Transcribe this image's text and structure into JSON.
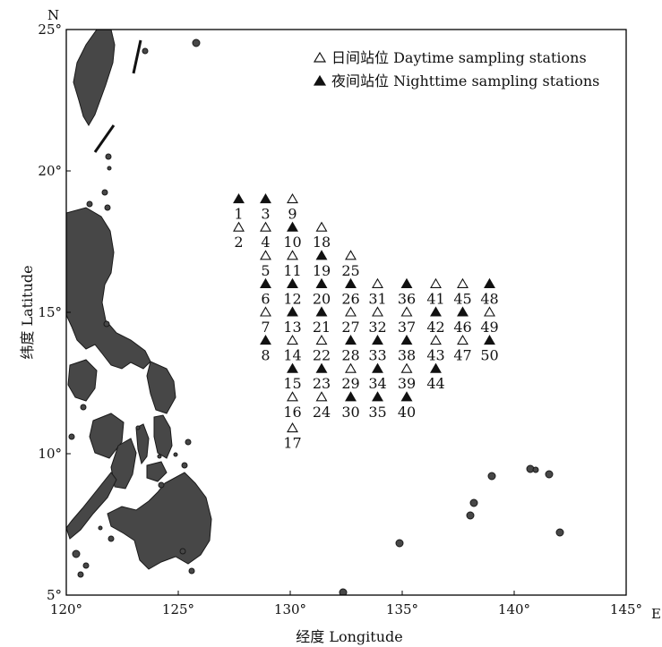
{
  "axes": {
    "x_ticks": [
      "120°",
      "125°",
      "130°",
      "135°",
      "140°",
      "145°"
    ],
    "y_ticks": [
      "25°",
      "20°",
      "15°",
      "10°",
      "5°"
    ],
    "x_unit": "E",
    "y_unit": "N",
    "xlabel": "经度 Longitude",
    "ylabel": "纬度 Latitude",
    "xlim": [
      120,
      145
    ],
    "ylim": [
      5,
      25
    ]
  },
  "legend": {
    "placement": "top-right",
    "day_label": "日间站位 Daytime sampling stations",
    "night_label": "夜间站位 Nighttime sampling stations"
  },
  "colors": {
    "land": "#474747",
    "frame": "#000000",
    "marker": "#111111"
  },
  "chart_data": {
    "type": "scatter",
    "xlabel": "经度 Longitude",
    "ylabel": "纬度 Latitude",
    "xlim": [
      120,
      145
    ],
    "ylim": [
      5,
      25
    ],
    "series": [
      {
        "name": "日间站位 Daytime sampling stations",
        "marker": "open-triangle"
      },
      {
        "name": "夜间站位 Nighttime sampling stations",
        "marker": "filled-triangle"
      }
    ],
    "stations": [
      {
        "id": "1",
        "lon": 127.7,
        "lat": 19,
        "type": "night"
      },
      {
        "id": "2",
        "lon": 127.7,
        "lat": 18,
        "type": "day"
      },
      {
        "id": "3",
        "lon": 128.9,
        "lat": 19,
        "type": "night"
      },
      {
        "id": "4",
        "lon": 128.9,
        "lat": 18,
        "type": "day"
      },
      {
        "id": "5",
        "lon": 128.9,
        "lat": 17,
        "type": "day"
      },
      {
        "id": "6",
        "lon": 128.9,
        "lat": 16,
        "type": "night"
      },
      {
        "id": "7",
        "lon": 128.9,
        "lat": 15,
        "type": "day"
      },
      {
        "id": "8",
        "lon": 128.9,
        "lat": 14,
        "type": "night"
      },
      {
        "id": "9",
        "lon": 130.1,
        "lat": 19,
        "type": "day"
      },
      {
        "id": "10",
        "lon": 130.1,
        "lat": 18,
        "type": "night"
      },
      {
        "id": "11",
        "lon": 130.1,
        "lat": 17,
        "type": "day"
      },
      {
        "id": "12",
        "lon": 130.1,
        "lat": 16,
        "type": "night"
      },
      {
        "id": "13",
        "lon": 130.1,
        "lat": 15,
        "type": "night"
      },
      {
        "id": "14",
        "lon": 130.1,
        "lat": 14,
        "type": "day"
      },
      {
        "id": "15",
        "lon": 130.1,
        "lat": 13,
        "type": "night"
      },
      {
        "id": "16",
        "lon": 130.1,
        "lat": 12,
        "type": "day"
      },
      {
        "id": "17",
        "lon": 130.1,
        "lat": 10.9,
        "type": "day"
      },
      {
        "id": "18",
        "lon": 131.4,
        "lat": 18,
        "type": "day"
      },
      {
        "id": "19",
        "lon": 131.4,
        "lat": 17,
        "type": "night"
      },
      {
        "id": "20",
        "lon": 131.4,
        "lat": 16,
        "type": "night"
      },
      {
        "id": "21",
        "lon": 131.4,
        "lat": 15,
        "type": "night"
      },
      {
        "id": "22",
        "lon": 131.4,
        "lat": 14,
        "type": "day"
      },
      {
        "id": "23",
        "lon": 131.4,
        "lat": 13,
        "type": "night"
      },
      {
        "id": "24",
        "lon": 131.4,
        "lat": 12,
        "type": "day"
      },
      {
        "id": "25",
        "lon": 132.7,
        "lat": 17,
        "type": "day"
      },
      {
        "id": "26",
        "lon": 132.7,
        "lat": 16,
        "type": "night"
      },
      {
        "id": "27",
        "lon": 132.7,
        "lat": 15,
        "type": "day"
      },
      {
        "id": "28",
        "lon": 132.7,
        "lat": 14,
        "type": "night"
      },
      {
        "id": "29",
        "lon": 132.7,
        "lat": 13,
        "type": "day"
      },
      {
        "id": "30",
        "lon": 132.7,
        "lat": 12,
        "type": "night"
      },
      {
        "id": "31",
        "lon": 133.9,
        "lat": 16,
        "type": "day"
      },
      {
        "id": "32",
        "lon": 133.9,
        "lat": 15,
        "type": "day"
      },
      {
        "id": "33",
        "lon": 133.9,
        "lat": 14,
        "type": "night"
      },
      {
        "id": "34",
        "lon": 133.9,
        "lat": 13,
        "type": "night"
      },
      {
        "id": "35",
        "lon": 133.9,
        "lat": 12,
        "type": "night"
      },
      {
        "id": "36",
        "lon": 135.2,
        "lat": 16,
        "type": "night"
      },
      {
        "id": "37",
        "lon": 135.2,
        "lat": 15,
        "type": "day"
      },
      {
        "id": "38",
        "lon": 135.2,
        "lat": 14,
        "type": "night"
      },
      {
        "id": "39",
        "lon": 135.2,
        "lat": 13,
        "type": "day"
      },
      {
        "id": "40",
        "lon": 135.2,
        "lat": 12,
        "type": "night"
      },
      {
        "id": "41",
        "lon": 136.5,
        "lat": 16,
        "type": "day"
      },
      {
        "id": "42",
        "lon": 136.5,
        "lat": 15,
        "type": "night"
      },
      {
        "id": "43",
        "lon": 136.5,
        "lat": 14,
        "type": "day"
      },
      {
        "id": "44",
        "lon": 136.5,
        "lat": 13,
        "type": "night"
      },
      {
        "id": "45",
        "lon": 137.7,
        "lat": 16,
        "type": "day"
      },
      {
        "id": "46",
        "lon": 137.7,
        "lat": 15,
        "type": "night"
      },
      {
        "id": "47",
        "lon": 137.7,
        "lat": 14,
        "type": "day"
      },
      {
        "id": "48",
        "lon": 138.9,
        "lat": 16,
        "type": "night"
      },
      {
        "id": "49",
        "lon": 138.9,
        "lat": 15,
        "type": "day"
      },
      {
        "id": "50",
        "lon": 138.9,
        "lat": 14,
        "type": "night"
      }
    ]
  }
}
